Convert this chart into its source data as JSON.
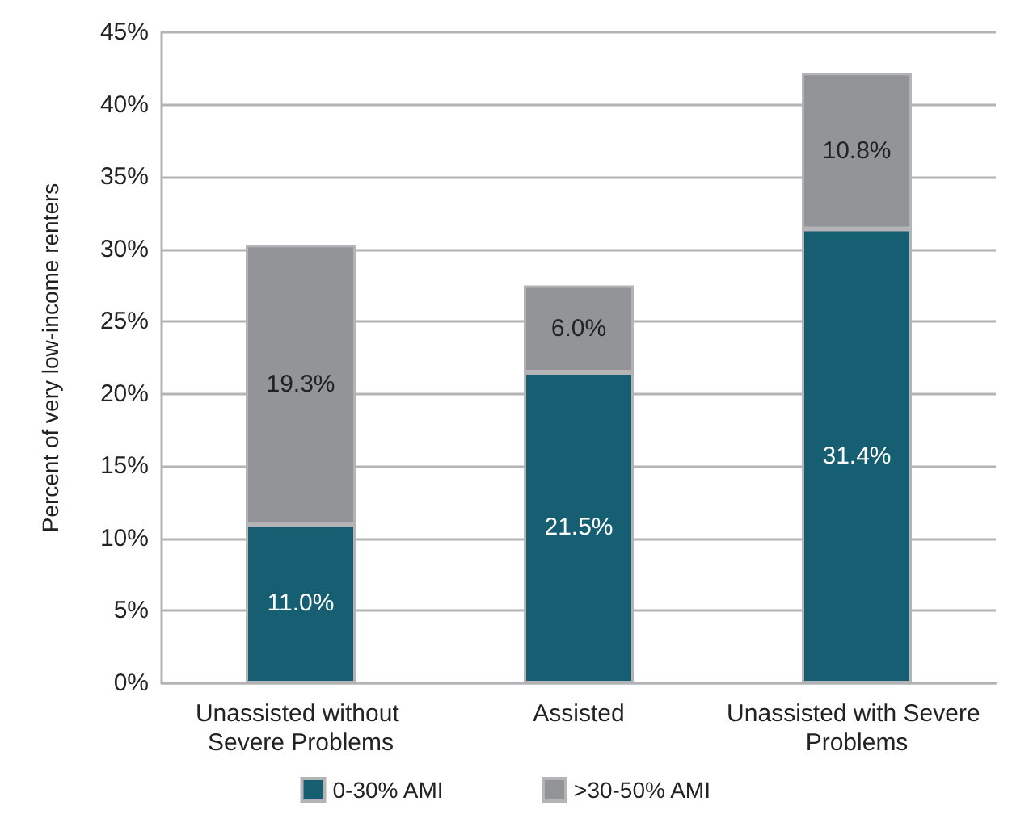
{
  "chart_data": {
    "type": "bar",
    "stacked": true,
    "ylabel": "Percent of very low-income renters",
    "categories": [
      "Unassisted without Severe Problems",
      "Assisted",
      "Unassisted with Severe Problems"
    ],
    "series": [
      {
        "name": "0-30% AMI",
        "color": "#165e72",
        "values": [
          11.0,
          21.5,
          31.4
        ],
        "value_labels": [
          "11.0%",
          "21.5%",
          "31.4%"
        ]
      },
      {
        "name": ">30-50% AMI",
        "color": "#929497",
        "values": [
          19.3,
          6.0,
          10.8
        ],
        "value_labels": [
          "19.3%",
          "6.0%",
          "10.8%"
        ]
      }
    ],
    "ylim": [
      0,
      45
    ],
    "yticks": [
      {
        "value": 0,
        "label": "0%"
      },
      {
        "value": 5,
        "label": "5%"
      },
      {
        "value": 10,
        "label": "10%"
      },
      {
        "value": 15,
        "label": "15%"
      },
      {
        "value": 20,
        "label": "20%"
      },
      {
        "value": 25,
        "label": "25%"
      },
      {
        "value": 30,
        "label": "30%"
      },
      {
        "value": 35,
        "label": "35%"
      },
      {
        "value": 40,
        "label": "40%"
      },
      {
        "value": 45,
        "label": "45%"
      }
    ],
    "grid": "y",
    "legend": "bottom"
  }
}
